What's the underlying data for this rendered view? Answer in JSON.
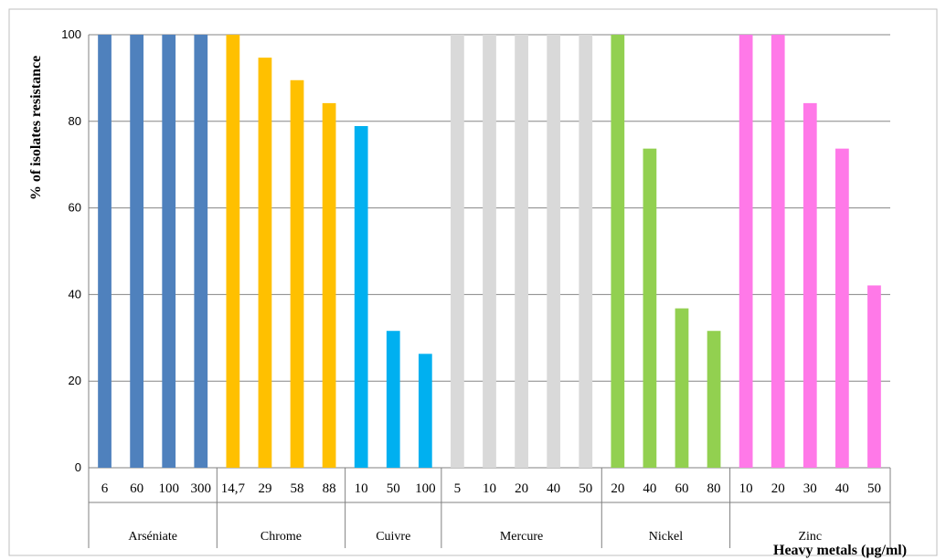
{
  "chart_data": {
    "type": "bar",
    "ylabel": "% of isolates  resistance",
    "xlabel": "Heavy metals (µg/ml)",
    "ylim": [
      0,
      100
    ],
    "yticks": [
      0,
      20,
      40,
      60,
      80,
      100
    ],
    "grid": true,
    "legend": "none",
    "groups": [
      {
        "name": "Arséniate",
        "color": "#4f81bd",
        "categories": [
          "6",
          "60",
          "100",
          "300"
        ],
        "values": [
          100,
          100,
          100,
          100
        ]
      },
      {
        "name": "Chrome",
        "color": "#ffc000",
        "categories": [
          "14,7",
          "29",
          "58",
          "88"
        ],
        "values": [
          100,
          94.7,
          89.5,
          84.2
        ]
      },
      {
        "name": "Cuivre",
        "color": "#00b0f0",
        "categories": [
          "10",
          "50",
          "100"
        ],
        "values": [
          78.9,
          31.6,
          26.3
        ]
      },
      {
        "name": "Mercure",
        "color": "#d9d9d9",
        "categories": [
          "5",
          "10",
          "20",
          "40",
          "50"
        ],
        "values": [
          100,
          100,
          100,
          100,
          100
        ]
      },
      {
        "name": "Nickel",
        "color": "#92d050",
        "categories": [
          "20",
          "40",
          "60",
          "80"
        ],
        "values": [
          100,
          73.7,
          36.8,
          31.6
        ]
      },
      {
        "name": "Zinc",
        "color": "#ff79e8",
        "categories": [
          "10",
          "20",
          "30",
          "40",
          "50"
        ],
        "values": [
          100,
          100,
          84.2,
          73.7,
          42.1
        ]
      }
    ]
  }
}
